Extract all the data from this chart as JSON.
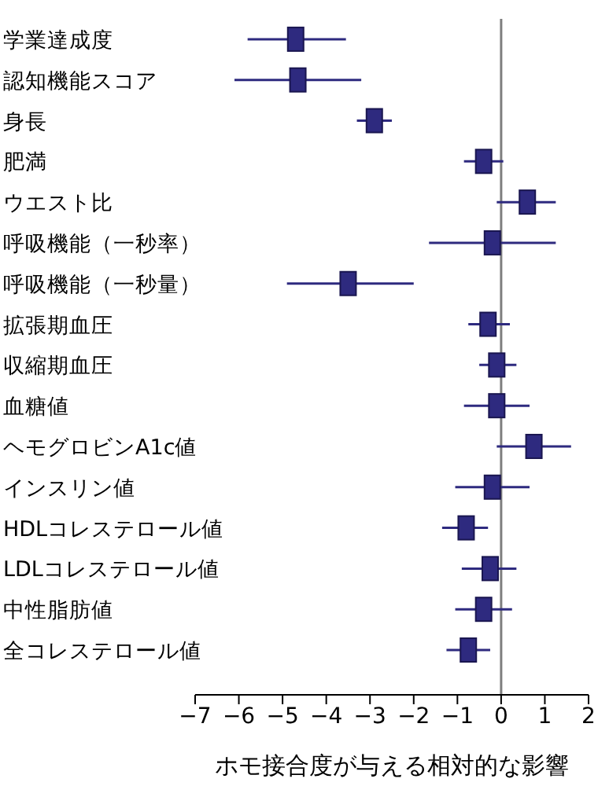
{
  "chart_data": {
    "type": "scatter",
    "orientation": "horizontal",
    "xlabel": "ホモ接合度が与える相対的な影響",
    "categories": [
      "学業達成度",
      "認知機能スコア",
      "身長",
      "肥満",
      "ウエスト比",
      "呼吸機能（一秒率）",
      "呼吸機能（一秒量）",
      "拡張期血圧",
      "収縮期血圧",
      "血糖値",
      "ヘモグロビンA1c値",
      "インスリン値",
      "HDLコレステロール値",
      "LDLコレステロール値",
      "中性脂肪値",
      "全コレステロール値"
    ],
    "values": [
      -4.7,
      -4.65,
      -2.9,
      -0.4,
      0.6,
      -0.2,
      -3.5,
      -0.3,
      -0.1,
      -0.1,
      0.75,
      -0.2,
      -0.8,
      -0.25,
      -0.4,
      -0.75
    ],
    "errors": [
      [
        -5.8,
        -3.55
      ],
      [
        -6.1,
        -3.2
      ],
      [
        -3.3,
        -2.5
      ],
      [
        -0.85,
        0.05
      ],
      [
        -0.1,
        1.25
      ],
      [
        -1.65,
        1.25
      ],
      [
        -4.9,
        -2.0
      ],
      [
        -0.75,
        0.2
      ],
      [
        -0.5,
        0.35
      ],
      [
        -0.85,
        0.65
      ],
      [
        -0.1,
        1.6
      ],
      [
        -1.05,
        0.65
      ],
      [
        -1.35,
        -0.3
      ],
      [
        -0.9,
        0.35
      ],
      [
        -1.05,
        0.25
      ],
      [
        -1.25,
        -0.25
      ]
    ],
    "color": "#2e2a7f",
    "marker": "square",
    "xlim": [
      -7,
      2
    ],
    "xticks": [
      -7,
      -6,
      -5,
      -4,
      -3,
      -2,
      -1,
      0,
      1,
      2
    ],
    "ref_lines": [
      {
        "axis": "x",
        "value": 0,
        "color": "#7f7f7f"
      }
    ],
    "grid": false
  }
}
